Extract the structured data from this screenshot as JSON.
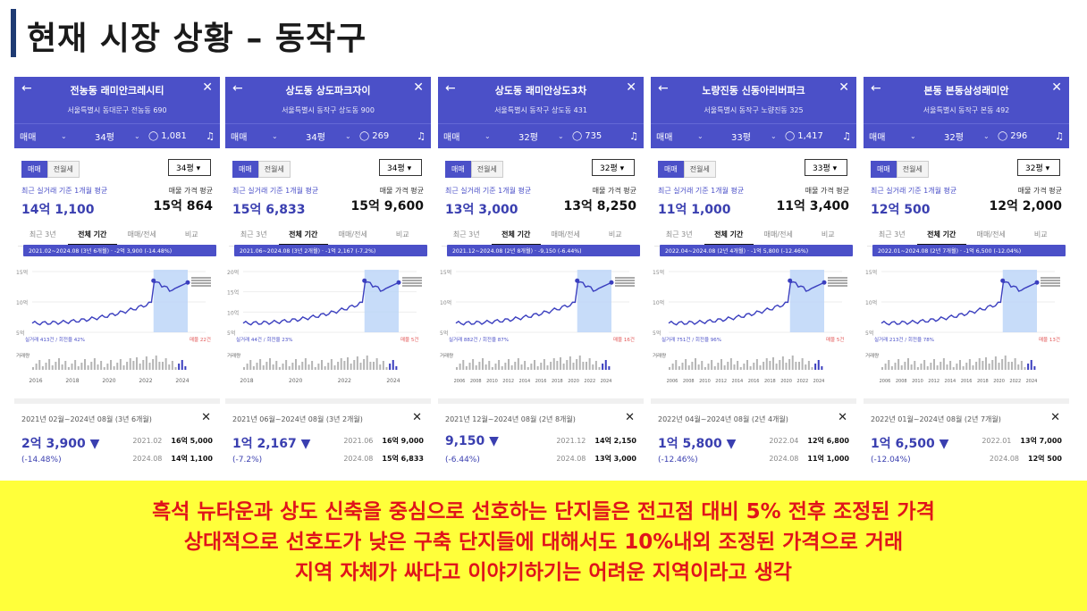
{
  "slide_title": "현재 시장 상황 – 동작구",
  "common": {
    "trade": "매매",
    "seg_sale": "매매",
    "seg_rent": "전월세",
    "label_left": "최근 실거래 기준 1개월 평균",
    "label_right": "매물 가격 평균",
    "tabs": [
      "최근 3년",
      "전체 기간",
      "매매/전세",
      "비교"
    ],
    "trades_prefix": "실거래",
    "listing_prefix": "매물"
  },
  "cards": [
    {
      "name": "전농동 래미안크레시티",
      "address": "서울특별시 동대문구 전농동 690",
      "size": "34평",
      "comments": "1,081",
      "recent_avg": "14억 1,100",
      "listing_avg": "15억 864",
      "period_banner": "2021.02~2024.08 (3년 6개월) · -2억 3,900 (-14.48%)",
      "trade_info": "실거래 413건 / 회전율 42%",
      "listing_info": "매물 22건",
      "range_label": "2021년 02월~2024년 08월 (3년 6개월)",
      "change": "2억 3,900 ▼",
      "change_pct": "(-14.48%)",
      "from_date": "2021.02",
      "from_price": "16억 5,000",
      "to_date": "2024.08",
      "to_price": "14억 1,100",
      "y_ticks": [
        "15억",
        "10억",
        "5억"
      ],
      "x_ticks": [
        "2016",
        "2018",
        "2020",
        "2022",
        "2024"
      ]
    },
    {
      "name": "상도동 상도파크자이",
      "address": "서울특별시 동작구 상도동 900",
      "size": "34평",
      "comments": "269",
      "recent_avg": "15억 6,833",
      "listing_avg": "15억 9,600",
      "period_banner": "2021.06~2024.08 (3년 2개월) · -1억 2,167 (-7.2%)",
      "trade_info": "실거래 44건 / 회전율 23%",
      "listing_info": "매물 5건",
      "range_label": "2021년 06월~2024년 08월 (3년 2개월)",
      "change": "1억 2,167 ▼",
      "change_pct": "(-7.2%)",
      "from_date": "2021.06",
      "from_price": "16억 9,000",
      "to_date": "2024.08",
      "to_price": "15억 6,833",
      "y_ticks": [
        "20억",
        "15억",
        "10억",
        "5억"
      ],
      "x_ticks": [
        "2018",
        "2020",
        "2022",
        "2024"
      ]
    },
    {
      "name": "상도동 래미안상도3차",
      "address": "서울특별시 동작구 상도동 431",
      "size": "32평",
      "comments": "735",
      "recent_avg": "13억 3,000",
      "listing_avg": "13억 8,250",
      "period_banner": "2021.12~2024.08 (2년 8개월) · -9,150 (-6.44%)",
      "trade_info": "실거래 882건 / 회전율 87%",
      "listing_info": "매물 16건",
      "range_label": "2021년 12월~2024년 08월 (2년 8개월)",
      "change": "9,150 ▼",
      "change_pct": "(-6.44%)",
      "from_date": "2021.12",
      "from_price": "14억 2,150",
      "to_date": "2024.08",
      "to_price": "13억 3,000",
      "y_ticks": [
        "15억",
        "10억",
        "5억"
      ],
      "x_ticks": [
        "2006",
        "2008",
        "2010",
        "2012",
        "2014",
        "2016",
        "2018",
        "2020",
        "2022",
        "2024"
      ]
    },
    {
      "name": "노량진동 신동아리버파크",
      "address": "서울특별시 동작구 노량진동 325",
      "size": "33평",
      "comments": "1,417",
      "recent_avg": "11억 1,000",
      "listing_avg": "11억 3,400",
      "period_banner": "2022.04~2024.08 (2년 4개월) · -1억 5,800 (-12.46%)",
      "trade_info": "실거래 751건 / 회전율 96%",
      "listing_info": "매물 5건",
      "range_label": "2022년 04월~2024년 08월 (2년 4개월)",
      "change": "1억 5,800 ▼",
      "change_pct": "(-12.46%)",
      "from_date": "2022.04",
      "from_price": "12억 6,800",
      "to_date": "2024.08",
      "to_price": "11억 1,000",
      "y_ticks": [
        "15억",
        "10억",
        "5억"
      ],
      "x_ticks": [
        "2006",
        "2008",
        "2010",
        "2012",
        "2014",
        "2016",
        "2018",
        "2020",
        "2022",
        "2024"
      ]
    },
    {
      "name": "본동 본동삼성래미안",
      "address": "서울특별시 동작구 본동 492",
      "size": "32평",
      "comments": "296",
      "recent_avg": "12억 500",
      "listing_avg": "12억 2,000",
      "period_banner": "2022.01~2024.08 (2년 7개월) · -1억 6,500 (-12.04%)",
      "trade_info": "실거래 213건 / 회전율 78%",
      "listing_info": "매물 13건",
      "range_label": "2022년 01월~2024년 08월 (2년 7개월)",
      "change": "1억 6,500 ▼",
      "change_pct": "(-12.04%)",
      "from_date": "2022.01",
      "from_price": "13억 7,000",
      "to_date": "2024.08",
      "to_price": "12억 500",
      "y_ticks": [
        "15억",
        "10억",
        "5억"
      ],
      "x_ticks": [
        "2006",
        "2008",
        "2010",
        "2012",
        "2014",
        "2016",
        "2018",
        "2020",
        "2022",
        "2024"
      ]
    }
  ],
  "banner": {
    "line1": "흑석 뉴타운과 상도 신축을 중심으로 선호하는 단지들은 전고점 대비 5% 전후 조정된 가격",
    "line2": "상대적으로 선호도가 낮은 구축 단지들에 대해서도 10%내외 조정된 가격으로 거래",
    "line3": "지역 자체가 싸다고 이야기하기는 어려운 지역이라고 생각"
  },
  "colors": {
    "header": "#4b50c8",
    "line": "#3b3fbf",
    "highlight": "#b9d3f7",
    "banner_bg": "#ffff3a",
    "banner_text": "#e0141a"
  }
}
